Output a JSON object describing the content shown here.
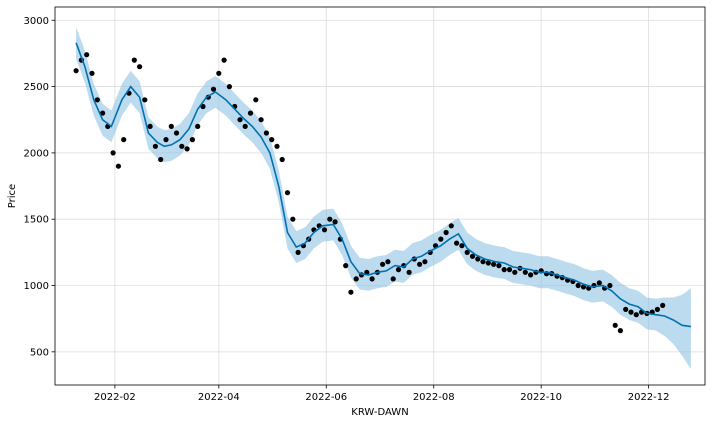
{
  "chart_data": {
    "type": "line",
    "title": "",
    "xlabel": "KRW-DAWN",
    "ylabel": "Price",
    "x_tick_labels": [
      "2022-02",
      "2022-04",
      "2022-06",
      "2022-08",
      "2022-10",
      "2022-12"
    ],
    "x_ticks": [
      "2022-02-01",
      "2022-04-01",
      "2022-06-01",
      "2022-08-01",
      "2022-10-01",
      "2022-12-01"
    ],
    "y_tick_labels": [
      "500",
      "1000",
      "1500",
      "2000",
      "2500",
      "3000"
    ],
    "y_ticks": [
      500,
      1000,
      1500,
      2000,
      2500,
      3000
    ],
    "xlim": [
      "2021-12-29",
      "2023-01-02"
    ],
    "ylim": [
      250,
      3100
    ],
    "grid": true,
    "legend": "none",
    "colors": {
      "forecast": "#0072B2",
      "uncertainty": "#8fc3e4",
      "observed": "#000000",
      "grid": "#dddddd"
    },
    "series": [
      {
        "kind": "forecast",
        "x": [
          "2022-01-10",
          "2022-01-15",
          "2022-01-20",
          "2022-01-25",
          "2022-01-30",
          "2022-02-05",
          "2022-02-10",
          "2022-02-15",
          "2022-02-20",
          "2022-02-25",
          "2022-03-01",
          "2022-03-05",
          "2022-03-10",
          "2022-03-15",
          "2022-03-20",
          "2022-03-25",
          "2022-03-30",
          "2022-04-05",
          "2022-04-10",
          "2022-04-15",
          "2022-04-20",
          "2022-04-25",
          "2022-04-30",
          "2022-05-05",
          "2022-05-10",
          "2022-05-15",
          "2022-05-20",
          "2022-05-25",
          "2022-05-30",
          "2022-06-05",
          "2022-06-10",
          "2022-06-15",
          "2022-06-20",
          "2022-06-25",
          "2022-06-30",
          "2022-07-05",
          "2022-07-10",
          "2022-07-15",
          "2022-07-20",
          "2022-07-25",
          "2022-07-30",
          "2022-08-05",
          "2022-08-10",
          "2022-08-15",
          "2022-08-20",
          "2022-08-25",
          "2022-08-30",
          "2022-09-05",
          "2022-09-10",
          "2022-09-15",
          "2022-09-20",
          "2022-09-25",
          "2022-09-30",
          "2022-10-05",
          "2022-10-10",
          "2022-10-15",
          "2022-10-20",
          "2022-10-25",
          "2022-10-30",
          "2022-11-05",
          "2022-11-10",
          "2022-11-15",
          "2022-11-20",
          "2022-11-25",
          "2022-11-30",
          "2022-12-05",
          "2022-12-10",
          "2022-12-15",
          "2022-12-20",
          "2022-12-25"
        ],
        "yhat": [
          2830,
          2650,
          2400,
          2250,
          2200,
          2400,
          2500,
          2420,
          2150,
          2080,
          2050,
          2060,
          2100,
          2180,
          2330,
          2420,
          2460,
          2400,
          2330,
          2260,
          2200,
          2120,
          2000,
          1750,
          1400,
          1290,
          1320,
          1400,
          1450,
          1460,
          1350,
          1180,
          1090,
          1080,
          1100,
          1110,
          1150,
          1140,
          1200,
          1220,
          1260,
          1300,
          1350,
          1390,
          1280,
          1230,
          1200,
          1180,
          1170,
          1140,
          1130,
          1120,
          1100,
          1100,
          1080,
          1060,
          1040,
          1010,
          990,
          1000,
          960,
          900,
          860,
          840,
          790,
          780,
          770,
          740,
          700,
          690
        ],
        "upper": [
          2950,
          2770,
          2520,
          2370,
          2320,
          2520,
          2620,
          2540,
          2270,
          2200,
          2170,
          2180,
          2220,
          2300,
          2450,
          2540,
          2580,
          2520,
          2450,
          2380,
          2320,
          2240,
          2120,
          1870,
          1520,
          1410,
          1440,
          1520,
          1570,
          1580,
          1470,
          1300,
          1210,
          1200,
          1220,
          1230,
          1270,
          1260,
          1320,
          1340,
          1380,
          1420,
          1470,
          1510,
          1400,
          1350,
          1320,
          1300,
          1290,
          1260,
          1250,
          1240,
          1220,
          1220,
          1200,
          1180,
          1160,
          1130,
          1110,
          1120,
          1080,
          1020,
          980,
          960,
          910,
          900,
          910,
          910,
          930,
          980
        ],
        "lower": [
          2710,
          2530,
          2280,
          2130,
          2080,
          2280,
          2380,
          2300,
          2030,
          1960,
          1930,
          1940,
          1980,
          2060,
          2210,
          2300,
          2340,
          2280,
          2210,
          2140,
          2080,
          2000,
          1880,
          1630,
          1280,
          1170,
          1200,
          1280,
          1330,
          1340,
          1230,
          1060,
          970,
          960,
          980,
          990,
          1030,
          1020,
          1080,
          1100,
          1140,
          1180,
          1230,
          1270,
          1160,
          1110,
          1080,
          1060,
          1050,
          1020,
          1010,
          1000,
          980,
          980,
          960,
          940,
          920,
          890,
          870,
          880,
          840,
          780,
          740,
          720,
          670,
          660,
          620,
          560,
          470,
          370
        ]
      },
      {
        "kind": "observed",
        "x": [
          "2022-01-10",
          "2022-01-13",
          "2022-01-16",
          "2022-01-19",
          "2022-01-22",
          "2022-01-25",
          "2022-01-28",
          "2022-01-31",
          "2022-02-03",
          "2022-02-06",
          "2022-02-09",
          "2022-02-12",
          "2022-02-15",
          "2022-02-18",
          "2022-02-21",
          "2022-02-24",
          "2022-02-27",
          "2022-03-02",
          "2022-03-05",
          "2022-03-08",
          "2022-03-11",
          "2022-03-14",
          "2022-03-17",
          "2022-03-20",
          "2022-03-23",
          "2022-03-26",
          "2022-03-29",
          "2022-04-01",
          "2022-04-04",
          "2022-04-07",
          "2022-04-10",
          "2022-04-13",
          "2022-04-16",
          "2022-04-19",
          "2022-04-22",
          "2022-04-25",
          "2022-04-28",
          "2022-05-01",
          "2022-05-04",
          "2022-05-07",
          "2022-05-10",
          "2022-05-13",
          "2022-05-16",
          "2022-05-19",
          "2022-05-22",
          "2022-05-25",
          "2022-05-28",
          "2022-05-31",
          "2022-06-03",
          "2022-06-06",
          "2022-06-09",
          "2022-06-12",
          "2022-06-15",
          "2022-06-18",
          "2022-06-21",
          "2022-06-24",
          "2022-06-27",
          "2022-06-30",
          "2022-07-03",
          "2022-07-06",
          "2022-07-09",
          "2022-07-12",
          "2022-07-15",
          "2022-07-18",
          "2022-07-21",
          "2022-07-24",
          "2022-07-27",
          "2022-07-30",
          "2022-08-02",
          "2022-08-05",
          "2022-08-08",
          "2022-08-11",
          "2022-08-14",
          "2022-08-17",
          "2022-08-20",
          "2022-08-23",
          "2022-08-26",
          "2022-08-29",
          "2022-09-01",
          "2022-09-04",
          "2022-09-07",
          "2022-09-10",
          "2022-09-13",
          "2022-09-16",
          "2022-09-19",
          "2022-09-22",
          "2022-09-25",
          "2022-09-28",
          "2022-10-01",
          "2022-10-04",
          "2022-10-07",
          "2022-10-10",
          "2022-10-13",
          "2022-10-16",
          "2022-10-19",
          "2022-10-22",
          "2022-10-25",
          "2022-10-28",
          "2022-10-31",
          "2022-11-03",
          "2022-11-06",
          "2022-11-09",
          "2022-11-12",
          "2022-11-15",
          "2022-11-18",
          "2022-11-21",
          "2022-11-24",
          "2022-11-27",
          "2022-11-30",
          "2022-12-03",
          "2022-12-06",
          "2022-12-09"
        ],
        "y": [
          2620,
          2700,
          2740,
          2600,
          2400,
          2300,
          2200,
          2000,
          1900,
          2100,
          2450,
          2700,
          2650,
          2400,
          2200,
          2050,
          1950,
          2100,
          2200,
          2150,
          2050,
          2030,
          2100,
          2200,
          2350,
          2420,
          2480,
          2600,
          2700,
          2500,
          2350,
          2250,
          2200,
          2300,
          2400,
          2250,
          2150,
          2100,
          2050,
          1950,
          1700,
          1500,
          1250,
          1300,
          1350,
          1420,
          1450,
          1420,
          1500,
          1480,
          1350,
          1150,
          950,
          1050,
          1080,
          1100,
          1050,
          1100,
          1160,
          1180,
          1050,
          1120,
          1150,
          1100,
          1200,
          1160,
          1180,
          1250,
          1300,
          1350,
          1400,
          1450,
          1320,
          1300,
          1250,
          1220,
          1200,
          1180,
          1170,
          1160,
          1150,
          1120,
          1120,
          1100,
          1130,
          1100,
          1080,
          1100,
          1110,
          1090,
          1090,
          1070,
          1060,
          1040,
          1030,
          1000,
          990,
          980,
          1000,
          1020,
          980,
          1000,
          700,
          660,
          820,
          800,
          780,
          800,
          790,
          800,
          820,
          850
        ]
      }
    ]
  }
}
